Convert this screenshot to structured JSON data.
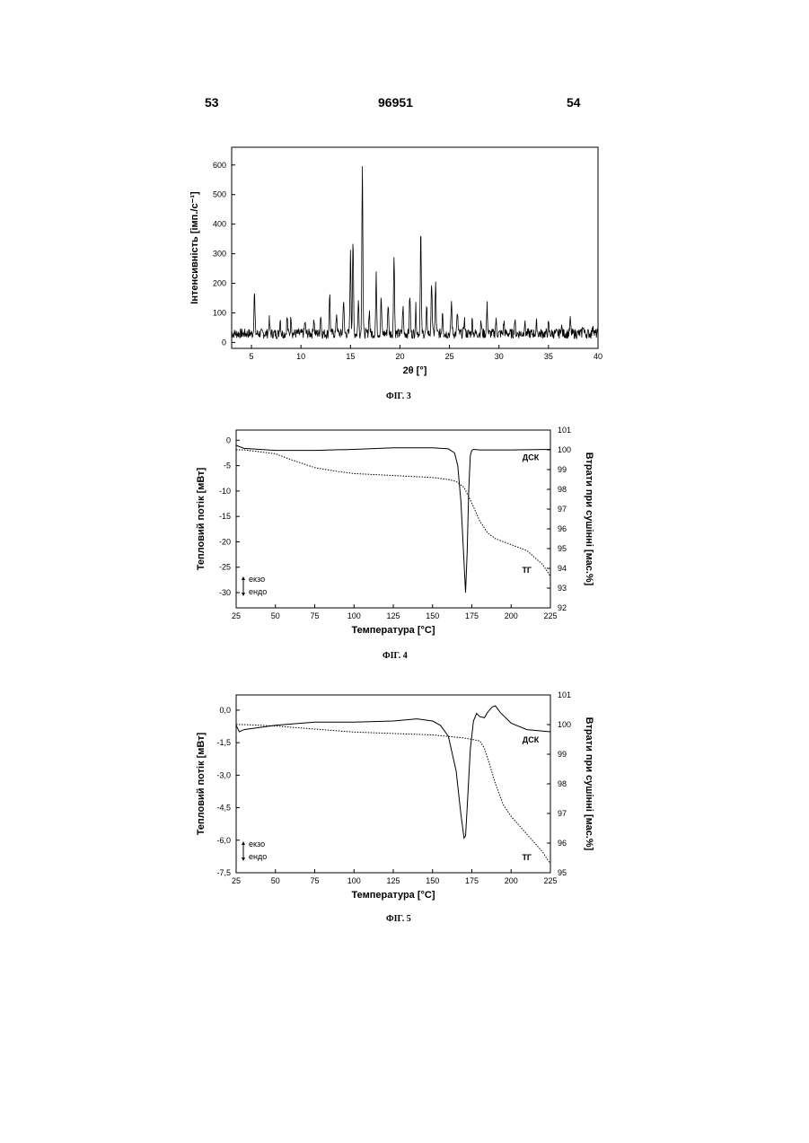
{
  "header": {
    "left": "53",
    "center": "96951",
    "right": "54"
  },
  "figures": [
    {
      "caption": "ФІГ. 3"
    },
    {
      "caption": "ФІГ. 4"
    },
    {
      "caption": "ФІГ. 5"
    }
  ],
  "chart_data": [
    {
      "type": "line",
      "xlabel": "2θ [°]",
      "ylabel": "Інтенсивність [імп./с⁻¹]",
      "xlim": [
        3,
        40
      ],
      "ylim": [
        -20,
        660
      ],
      "xticks": [
        "5",
        "10",
        "15",
        "20",
        "25",
        "30",
        "35",
        "40"
      ],
      "yticks": [
        "0",
        "100",
        "200",
        "300",
        "400",
        "500",
        "600"
      ],
      "baseline": 30,
      "peaks": [
        {
          "x": 5.3,
          "y": 170
        },
        {
          "x": 6.8,
          "y": 75
        },
        {
          "x": 7.9,
          "y": 80
        },
        {
          "x": 8.6,
          "y": 85
        },
        {
          "x": 9.0,
          "y": 90
        },
        {
          "x": 10.4,
          "y": 70
        },
        {
          "x": 11.3,
          "y": 85
        },
        {
          "x": 12.0,
          "y": 95
        },
        {
          "x": 12.9,
          "y": 165
        },
        {
          "x": 13.6,
          "y": 100
        },
        {
          "x": 14.3,
          "y": 150
        },
        {
          "x": 15.0,
          "y": 300
        },
        {
          "x": 15.25,
          "y": 345
        },
        {
          "x": 15.8,
          "y": 140
        },
        {
          "x": 16.2,
          "y": 610
        },
        {
          "x": 16.9,
          "y": 110
        },
        {
          "x": 17.6,
          "y": 225
        },
        {
          "x": 18.1,
          "y": 150
        },
        {
          "x": 18.8,
          "y": 130
        },
        {
          "x": 19.4,
          "y": 305
        },
        {
          "x": 20.3,
          "y": 120
        },
        {
          "x": 21.0,
          "y": 160
        },
        {
          "x": 21.6,
          "y": 120
        },
        {
          "x": 22.1,
          "y": 380
        },
        {
          "x": 22.7,
          "y": 110
        },
        {
          "x": 23.2,
          "y": 210
        },
        {
          "x": 23.6,
          "y": 195
        },
        {
          "x": 24.3,
          "y": 110
        },
        {
          "x": 25.2,
          "y": 140
        },
        {
          "x": 25.8,
          "y": 100
        },
        {
          "x": 26.5,
          "y": 80
        },
        {
          "x": 27.3,
          "y": 75
        },
        {
          "x": 28.2,
          "y": 70
        },
        {
          "x": 28.8,
          "y": 125
        },
        {
          "x": 29.7,
          "y": 75
        },
        {
          "x": 30.5,
          "y": 70
        },
        {
          "x": 31.6,
          "y": 75
        },
        {
          "x": 32.6,
          "y": 70
        },
        {
          "x": 33.8,
          "y": 65
        },
        {
          "x": 35.0,
          "y": 60
        },
        {
          "x": 36.3,
          "y": 60
        },
        {
          "x": 37.2,
          "y": 75
        },
        {
          "x": 38.5,
          "y": 60
        },
        {
          "x": 39.5,
          "y": 65
        }
      ]
    },
    {
      "type": "line",
      "xlabel": "Температура [°C]",
      "ylabel": "Тепловий потік [мВт]",
      "y2label": "Втрати при сушінні [мас.%]",
      "xlim": [
        25,
        225
      ],
      "ylim": [
        -33,
        2
      ],
      "y2lim": [
        92,
        101
      ],
      "xticks": [
        "25",
        "50",
        "75",
        "100",
        "125",
        "150",
        "175",
        "200",
        "225"
      ],
      "yticks": [
        "0",
        "-5",
        "-10",
        "-15",
        "-20",
        "-25",
        "-30"
      ],
      "y2ticks": [
        "92",
        "93",
        "94",
        "95",
        "96",
        "97",
        "98",
        "99",
        "100",
        "101"
      ],
      "legend_arrows": {
        "top": "екзо",
        "bottom": "ендо"
      },
      "series": [
        {
          "name": "ДСК",
          "x": [
            25,
            30,
            50,
            75,
            100,
            125,
            150,
            160,
            164,
            166,
            168,
            170,
            171,
            172,
            173,
            174,
            175,
            176,
            180,
            200,
            225
          ],
          "y": [
            -1.0,
            -1.6,
            -2.0,
            -2.0,
            -1.8,
            -1.5,
            -1.5,
            -1.7,
            -2.5,
            -5,
            -12,
            -24,
            -30,
            -22,
            -10,
            -3,
            -2.0,
            -1.8,
            -1.9,
            -1.9,
            -1.8
          ]
        },
        {
          "name": "ТГ",
          "x": [
            25,
            30,
            40,
            50,
            60,
            75,
            90,
            100,
            125,
            150,
            160,
            165,
            170,
            175,
            180,
            185,
            190,
            200,
            210,
            220,
            225
          ],
          "y": [
            100.0,
            100.0,
            99.9,
            99.8,
            99.5,
            99.1,
            98.9,
            98.8,
            98.7,
            98.6,
            98.5,
            98.4,
            98.1,
            97.3,
            96.4,
            95.8,
            95.5,
            95.2,
            94.9,
            94.2,
            93.6
          ]
        }
      ]
    },
    {
      "type": "line",
      "xlabel": "Температура [°C]",
      "ylabel": "Тепловий потік [мВт]",
      "y2label": "Втрати при сушінні [мас.%]",
      "xlim": [
        25,
        225
      ],
      "ylim": [
        -7.5,
        0.7
      ],
      "y2lim": [
        95,
        101
      ],
      "xticks": [
        "25",
        "50",
        "75",
        "100",
        "125",
        "150",
        "175",
        "200",
        "225"
      ],
      "yticks": [
        "0,0",
        "-1,5",
        "-3,0",
        "-4,5",
        "-6,0",
        "-7,5"
      ],
      "y2ticks": [
        "95",
        "96",
        "97",
        "98",
        "99",
        "100",
        "101"
      ],
      "legend_arrows": {
        "top": "екзо",
        "bottom": "ендо"
      },
      "series": [
        {
          "name": "ДСК",
          "x": [
            25,
            27,
            30,
            50,
            75,
            100,
            125,
            140,
            150,
            155,
            160,
            165,
            168,
            170,
            171,
            172,
            174,
            176,
            178,
            180,
            183,
            185,
            188,
            190,
            193,
            200,
            210,
            225
          ],
          "y": [
            -0.7,
            -1.0,
            -0.9,
            -0.7,
            -0.55,
            -0.55,
            -0.5,
            -0.4,
            -0.5,
            -0.7,
            -1.2,
            -2.8,
            -4.8,
            -5.9,
            -5.8,
            -4.5,
            -1.8,
            -0.5,
            -0.15,
            -0.3,
            -0.35,
            -0.1,
            0.15,
            0.2,
            -0.1,
            -0.6,
            -0.9,
            -1.0
          ]
        },
        {
          "name": "ТГ",
          "x": [
            25,
            30,
            50,
            75,
            100,
            125,
            150,
            160,
            170,
            175,
            180,
            183,
            186,
            190,
            195,
            200,
            210,
            220,
            225
          ],
          "y": [
            100.0,
            100.0,
            99.95,
            99.85,
            99.75,
            99.7,
            99.65,
            99.6,
            99.55,
            99.5,
            99.45,
            99.2,
            98.7,
            98.0,
            97.3,
            96.9,
            96.3,
            95.7,
            95.3
          ]
        }
      ]
    }
  ]
}
